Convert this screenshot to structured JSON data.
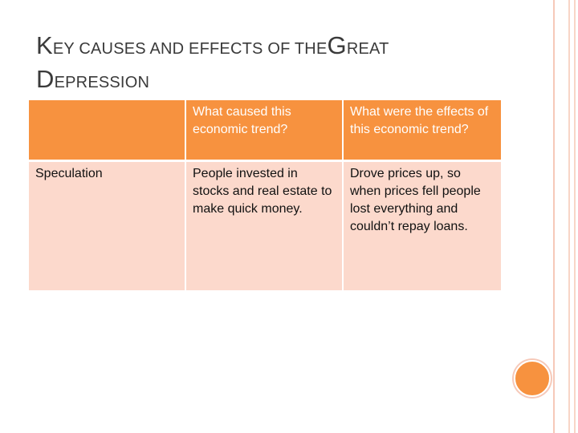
{
  "title": {
    "line1_cap": "K",
    "line1_rest": "EY CAUSES AND EFFECTS OF THE",
    "line1_cap2": "G",
    "line1_rest2": "REAT",
    "line2_cap": "D",
    "line2_rest": "EPRESSION"
  },
  "table": {
    "headers": [
      "",
      "What caused this economic trend?",
      "What were the effects of this economic trend?"
    ],
    "rows": [
      [
        "Speculation",
        "People invested in stocks and real estate to make quick money.",
        "Drove prices up, so when prices fell people lost everything and couldn’t repay loans."
      ]
    ]
  },
  "colors": {
    "header_bg": "#f7923f",
    "row_bg": "#fcd9cc",
    "accent": "#f7923f"
  }
}
